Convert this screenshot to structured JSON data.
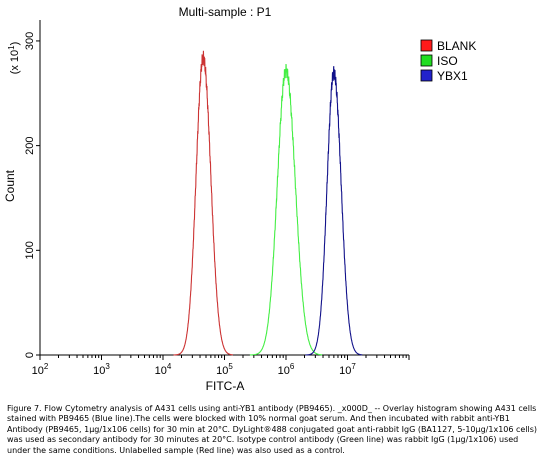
{
  "chart_data": {
    "type": "area",
    "title": "Multi-sample : P1",
    "xlabel": "FITC-A",
    "ylabel": "Count",
    "y_multiplier": "(x 10",
    "y_multiplier_exp": "1",
    "y_multiplier_close": ")",
    "xscale": "log",
    "xlim": [
      100,
      100000000
    ],
    "ylim": [
      0,
      320
    ],
    "x_ticks": [
      {
        "base": "10",
        "exp": "2",
        "value": 100
      },
      {
        "base": "10",
        "exp": "3",
        "value": 1000
      },
      {
        "base": "10",
        "exp": "4",
        "value": 10000
      },
      {
        "base": "10",
        "exp": "5",
        "value": 100000
      },
      {
        "base": "10",
        "exp": "6",
        "value": 1000000
      },
      {
        "base": "10",
        "exp": "7",
        "value": 10000000
      }
    ],
    "y_ticks": [
      0,
      100,
      200,
      300
    ],
    "grid": false,
    "legend_position": "right",
    "series": [
      {
        "name": "BLANK",
        "color": "#ff1a1a",
        "line_color": "#cc3333",
        "peak_x": 45000,
        "peak_y": 284,
        "log_sigma": 0.115
      },
      {
        "name": "ISO",
        "color": "#22dd22",
        "line_color": "#44ee44",
        "peak_x": 1000000,
        "peak_y": 272,
        "log_sigma": 0.14
      },
      {
        "name": "YBX1",
        "color": "#2222cc",
        "line_color": "#11118a",
        "peak_x": 6000000,
        "peak_y": 270,
        "log_sigma": 0.11
      }
    ]
  },
  "caption": "Figure 7. Flow Cytometry analysis of A431 cells using anti-YB1 antibody (PB9465). _x000D_ -- Overlay histogram showing A431 cells stained with PB9465 (Blue line).The cells were blocked with 10% normal goat serum. And then incubated with rabbit anti-YB1 Antibody (PB9465, 1μg/1x106 cells) for 30 min at 20°C. DyLight®488 conjugated goat anti-rabbit IgG (BA1127, 5-10μg/1x106 cells) was used as secondary antibody for 30 minutes at 20°C. Isotype control antibody (Green line) was rabbit IgG (1μg/1x106) used under the same conditions. Unlabelled sample (Red line) was also used as a control."
}
